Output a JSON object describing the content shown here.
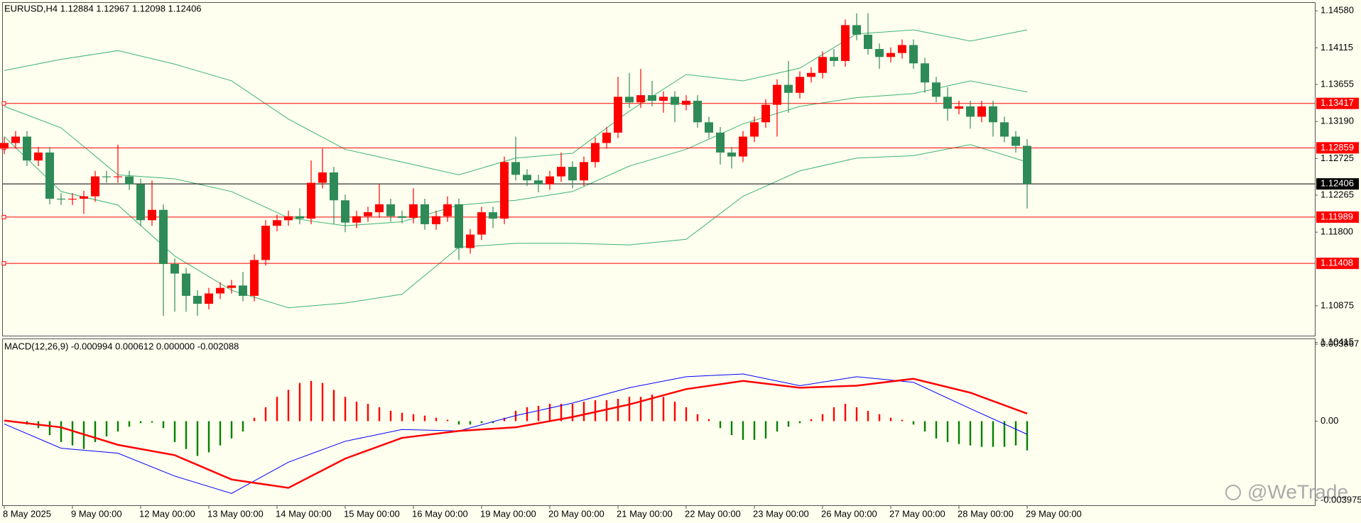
{
  "chart_data": [
    {
      "type": "candlestick",
      "title": "EURUSD,H4  1.12884 1.12967 1.12098 1.12406",
      "watermark": "@WeTrade",
      "categories": [
        "8 May 2025",
        null,
        null,
        null,
        null,
        null,
        "9 May 00:00",
        null,
        null,
        null,
        null,
        null,
        "12 May 00:00",
        null,
        null,
        null,
        null,
        null,
        "13 May 00:00",
        null,
        null,
        null,
        null,
        null,
        "14 May 00:00",
        null,
        null,
        null,
        null,
        null,
        "15 May 00:00",
        null,
        null,
        null,
        null,
        null,
        "16 May 00:00",
        null,
        null,
        null,
        null,
        null,
        "19 May 00:00",
        null,
        null,
        null,
        null,
        null,
        "20 May 00:00",
        null,
        null,
        null,
        null,
        null,
        "21 May 00:00",
        null,
        null,
        null,
        null,
        null,
        "22 May 00:00",
        null,
        null,
        null,
        null,
        null,
        "23 May 00:00",
        null,
        null,
        null,
        null,
        null,
        "26 May 00:00",
        null,
        null,
        null,
        null,
        null,
        "27 May 00:00",
        null,
        null,
        null,
        null,
        null,
        "28 May 00:00",
        null,
        null,
        null,
        null,
        null,
        "29 May 00:00"
      ],
      "open": [
        1.1285,
        1.1292,
        1.13,
        1.127,
        1.128,
        1.1222,
        1.1221,
        1.1222,
        1.1225,
        1.125,
        1.1249,
        1.125,
        1.124,
        1.1195,
        1.1208,
        1.114,
        1.1128,
        1.11,
        1.109,
        1.1103,
        1.111,
        1.1113,
        1.11,
        1.1145,
        1.1188,
        1.1195,
        1.12,
        1.1197,
        1.1242,
        1.1255,
        1.122,
        1.1192,
        1.12,
        1.1205,
        1.1215,
        1.12,
        1.1198,
        1.1215,
        1.119,
        1.12,
        1.1215,
        1.116,
        1.1177,
        1.1205,
        1.1197,
        1.1268,
        1.1252,
        1.1245,
        1.124,
        1.125,
        1.1262,
        1.1245,
        1.1268,
        1.1292,
        1.1305,
        1.135,
        1.1343,
        1.1352,
        1.1345,
        1.135,
        1.134,
        1.1345,
        1.1318,
        1.1305,
        1.128,
        1.1275,
        1.13,
        1.1318,
        1.134,
        1.1365,
        1.1355,
        1.1375,
        1.138,
        1.14,
        1.1395,
        1.144,
        1.1428,
        1.141,
        1.14,
        1.1405,
        1.1415,
        1.1392,
        1.1368,
        1.135,
        1.1335,
        1.1338,
        1.1325,
        1.1338,
        1.1318,
        1.13,
        1.12884
      ],
      "high": [
        1.1299,
        1.1307,
        1.1307,
        1.1287,
        1.1287,
        1.1229,
        1.1229,
        1.1232,
        1.1257,
        1.1257,
        1.129,
        1.1257,
        1.1247,
        1.1245,
        1.1215,
        1.1147,
        1.1135,
        1.1107,
        1.111,
        1.1117,
        1.112,
        1.113,
        1.1152,
        1.1195,
        1.1202,
        1.1207,
        1.121,
        1.127,
        1.1285,
        1.1262,
        1.1227,
        1.1207,
        1.1212,
        1.124,
        1.1222,
        1.1207,
        1.1235,
        1.1222,
        1.1207,
        1.1225,
        1.1222,
        1.1184,
        1.1212,
        1.1212,
        1.1275,
        1.13,
        1.1259,
        1.1252,
        1.1257,
        1.128,
        1.1269,
        1.1275,
        1.1299,
        1.1312,
        1.1375,
        1.138,
        1.1385,
        1.137,
        1.1357,
        1.1357,
        1.1352,
        1.1352,
        1.1325,
        1.1312,
        1.1287,
        1.1307,
        1.1325,
        1.1347,
        1.1372,
        1.1395,
        1.1382,
        1.1387,
        1.1407,
        1.141,
        1.1447,
        1.1455,
        1.1455,
        1.1417,
        1.1412,
        1.1422,
        1.1422,
        1.1399,
        1.1375,
        1.1362,
        1.1345,
        1.1345,
        1.1345,
        1.1345,
        1.1325,
        1.1307,
        1.12967
      ],
      "low": [
        1.1278,
        1.1285,
        1.1263,
        1.1263,
        1.1215,
        1.1214,
        1.1214,
        1.1203,
        1.1218,
        1.1242,
        1.1242,
        1.1233,
        1.1188,
        1.1188,
        1.1075,
        1.108,
        1.108,
        1.1075,
        1.1083,
        1.1096,
        1.1103,
        1.1093,
        1.1093,
        1.1138,
        1.1181,
        1.1188,
        1.119,
        1.119,
        1.1235,
        1.119,
        1.118,
        1.1185,
        1.1193,
        1.1198,
        1.1193,
        1.1191,
        1.1191,
        1.1183,
        1.1183,
        1.1193,
        1.1145,
        1.1153,
        1.117,
        1.1185,
        1.119,
        1.1245,
        1.1238,
        1.123,
        1.1233,
        1.1243,
        1.1235,
        1.1238,
        1.1261,
        1.1285,
        1.1298,
        1.1336,
        1.1336,
        1.1338,
        1.133,
        1.1318,
        1.1333,
        1.1311,
        1.1298,
        1.1265,
        1.126,
        1.1268,
        1.1293,
        1.1311,
        1.13,
        1.133,
        1.1348,
        1.1368,
        1.1373,
        1.1388,
        1.1388,
        1.1421,
        1.1403,
        1.1385,
        1.1393,
        1.1398,
        1.1385,
        1.1355,
        1.1343,
        1.132,
        1.1328,
        1.131,
        1.1318,
        1.13,
        1.1293,
        1.128,
        1.12098
      ],
      "close": [
        1.1292,
        1.13,
        1.127,
        1.128,
        1.1222,
        1.1221,
        1.1222,
        1.1225,
        1.125,
        1.1249,
        1.125,
        1.124,
        1.1195,
        1.1208,
        1.114,
        1.1128,
        1.11,
        1.109,
        1.1103,
        1.111,
        1.1113,
        1.11,
        1.1145,
        1.1188,
        1.1195,
        1.12,
        1.1197,
        1.1242,
        1.1255,
        1.122,
        1.1192,
        1.12,
        1.1205,
        1.1215,
        1.12,
        1.1198,
        1.1215,
        1.119,
        1.12,
        1.1215,
        1.116,
        1.1177,
        1.1205,
        1.1197,
        1.1268,
        1.1252,
        1.1245,
        1.124,
        1.125,
        1.1262,
        1.1245,
        1.1268,
        1.1292,
        1.1305,
        1.135,
        1.1343,
        1.1352,
        1.1345,
        1.135,
        1.134,
        1.1345,
        1.1318,
        1.1305,
        1.128,
        1.1275,
        1.13,
        1.1318,
        1.134,
        1.1365,
        1.1355,
        1.1375,
        1.138,
        1.14,
        1.1395,
        1.144,
        1.1428,
        1.141,
        1.14,
        1.1405,
        1.1415,
        1.1392,
        1.1368,
        1.135,
        1.1335,
        1.1338,
        1.1325,
        1.1338,
        1.1318,
        1.13,
        1.12884,
        1.12406
      ],
      "up_color": "#ff0000",
      "down_color": "#2e8b57",
      "bands": {
        "color": "#3cb371",
        "x": [
          0,
          5,
          10,
          15,
          20,
          25,
          30,
          35,
          40,
          45,
          50,
          55,
          60,
          65,
          70,
          75,
          80,
          85,
          90
        ],
        "upper": [
          1.1383,
          1.1397,
          1.1408,
          1.1391,
          1.137,
          1.1322,
          1.1284,
          1.1268,
          1.1252,
          1.1273,
          1.1279,
          1.1332,
          1.1378,
          1.137,
          1.1386,
          1.1429,
          1.1434,
          1.142,
          1.1434
        ],
        "middle": [
          1.1338,
          1.1311,
          1.1252,
          1.1247,
          1.1231,
          1.1198,
          1.1188,
          1.1193,
          1.1214,
          1.122,
          1.1231,
          1.1263,
          1.1284,
          1.1316,
          1.1338,
          1.1349,
          1.1354,
          1.137,
          1.1356
        ],
        "lower": [
          1.13,
          1.1231,
          1.1214,
          1.115,
          1.1107,
          1.1085,
          1.1091,
          1.1102,
          1.1161,
          1.1166,
          1.1166,
          1.1164,
          1.1171,
          1.1225,
          1.1257,
          1.1273,
          1.1276,
          1.129,
          1.1268
        ]
      },
      "levels": [
        {
          "value": 1.13417,
          "color": "#ff0000"
        },
        {
          "value": 1.12859,
          "color": "#ff0000"
        },
        {
          "value": 1.11989,
          "color": "#ff0000"
        },
        {
          "value": 1.11408,
          "color": "#ff0000"
        }
      ],
      "last_price": {
        "value": 1.12406,
        "color": "#000000"
      },
      "ylim": [
        1.105,
        1.1468
      ],
      "yticks": [
        {
          "value": 1.1458,
          "label": "1.14580"
        },
        1.14115,
        1.13655,
        {
          "value": 1.1319,
          "label": "1.13190"
        },
        1.12725,
        1.12265,
        {
          "value": 1.118,
          "label": "1.11800"
        },
        1.10875,
        1.10415
      ]
    },
    {
      "type": "macd",
      "title": "MACD(12,26,9) -0.000994 0.000612 0.000000 -0.002088",
      "histogram": [
        0,
        -7e-05,
        -0.00017,
        -0.00035,
        -0.0007,
        -0.00105,
        -0.00122,
        -0.0014,
        -0.00105,
        -0.00077,
        -0.00052,
        -0.00028,
        -0.0001,
        -7e-05,
        -0.00035,
        -0.00105,
        -0.0014,
        -0.00175,
        -0.00157,
        -0.00122,
        -0.00087,
        -0.00052,
        0.00017,
        0.0007,
        0.00122,
        0.00157,
        0.00192,
        0.00202,
        0.00192,
        0.00157,
        0.00122,
        0.00098,
        0.00087,
        0.0007,
        0.00052,
        0.00042,
        0.00035,
        0.00028,
        0.00017,
        7e-05,
        -0.00017,
        -0.00017,
        -0.0001,
        -0.0001,
        0.00017,
        0.00052,
        0.0007,
        0.00077,
        0.00087,
        0.00087,
        0.00087,
        0.00098,
        0.00105,
        0.00105,
        0.00112,
        0.00122,
        0.00122,
        0.00133,
        0.00122,
        0.00098,
        0.0007,
        0.00035,
        0.0001,
        -0.00035,
        -0.0007,
        -0.00094,
        -0.00094,
        -0.00087,
        -0.00052,
        -0.00028,
        -0.0001,
        0.0001,
        0.00035,
        0.0007,
        0.00087,
        0.0007,
        0.00052,
        0.00035,
        0.00017,
        7e-05,
        -0.00017,
        -0.00052,
        -0.00087,
        -0.00105,
        -0.00115,
        -0.00122,
        -0.00129,
        -0.00129,
        -0.00129,
        -0.00122,
        -0.00147
      ],
      "up_color": "#ff0000",
      "down_color": "#008000",
      "lines": [
        {
          "color": "#0000ff",
          "width": 1,
          "x": [
            0,
            5,
            10,
            15,
            20,
            25,
            30,
            35,
            40,
            45,
            50,
            55,
            60,
            65,
            70,
            75,
            80,
            85,
            90
          ],
          "values": [
            -0.00014,
            -0.00136,
            -0.00161,
            -0.00276,
            -0.00363,
            -0.00206,
            -0.00101,
            -0.00042,
            -0.00049,
            0.00028,
            0.00091,
            0.00168,
            0.00223,
            0.00237,
            0.00178,
            0.00223,
            0.00195,
            0.00063,
            -0.00066
          ]
        },
        {
          "color": "#ff0000",
          "width": 2.5,
          "x": [
            0,
            5,
            10,
            15,
            20,
            25,
            30,
            35,
            40,
            45,
            50,
            55,
            60,
            65,
            70,
            75,
            80,
            85,
            90
          ],
          "values": [
            3e-05,
            -0.00031,
            -0.00119,
            -0.00171,
            -0.00293,
            -0.00335,
            -0.00188,
            -0.00084,
            -0.00049,
            -0.00031,
            0.00021,
            0.00084,
            0.00161,
            0.00202,
            0.00168,
            0.00178,
            0.00213,
            0.00143,
            0.00038
          ]
        }
      ],
      "ylim": [
        -0.003975,
        0.003867
      ],
      "yticks": [
        0.003867,
        {
          "value": 0,
          "label": "0.00"
        },
        -0.003975
      ]
    }
  ]
}
